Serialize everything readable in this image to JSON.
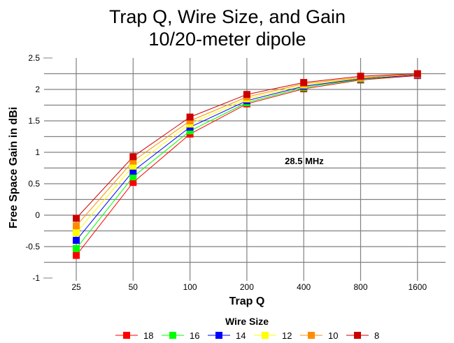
{
  "chart_data": {
    "type": "line",
    "title": [
      "Trap Q, Wire Size, and Gain",
      "10/20-meter dipole"
    ],
    "xlabel": "Trap Q",
    "ylabel": "Free Space Gain in dBi",
    "x": [
      "25",
      "50",
      "100",
      "200",
      "400",
      "800",
      "1600"
    ],
    "x_scale": "categorical (log2 spaced)",
    "ylim": [
      -1,
      2.5
    ],
    "y_ticks": [
      "2.5",
      "2",
      "1.5",
      "1",
      "0.5",
      "0",
      "-0.5",
      "-1"
    ],
    "y_tick_values": [
      2.5,
      2,
      1.5,
      1,
      0.5,
      0,
      -0.5,
      -1
    ],
    "y_minor_step": 0.25,
    "grid": true,
    "annotation": "28.5 MHz",
    "legend": {
      "title": "Wire Size",
      "placement": "bottom-center"
    },
    "series": [
      {
        "name": "18",
        "color": "#ff0000",
        "values": [
          -0.64,
          0.52,
          1.29,
          1.77,
          2.01,
          2.15,
          2.22
        ]
      },
      {
        "name": "16",
        "color": "#00ff00",
        "values": [
          -0.53,
          0.61,
          1.34,
          1.79,
          2.03,
          2.16,
          2.23
        ]
      },
      {
        "name": "14",
        "color": "#0000ff",
        "values": [
          -0.4,
          0.7,
          1.4,
          1.82,
          2.05,
          2.17,
          2.23
        ]
      },
      {
        "name": "12",
        "color": "#ffff00",
        "values": [
          -0.28,
          0.78,
          1.45,
          1.85,
          2.07,
          2.18,
          2.24
        ]
      },
      {
        "name": "10",
        "color": "#ff8c00",
        "values": [
          -0.17,
          0.86,
          1.5,
          1.88,
          2.09,
          2.19,
          2.24
        ]
      },
      {
        "name": "8",
        "color": "#cc0000",
        "values": [
          -0.05,
          0.93,
          1.56,
          1.92,
          2.11,
          2.21,
          2.25
        ]
      }
    ]
  }
}
